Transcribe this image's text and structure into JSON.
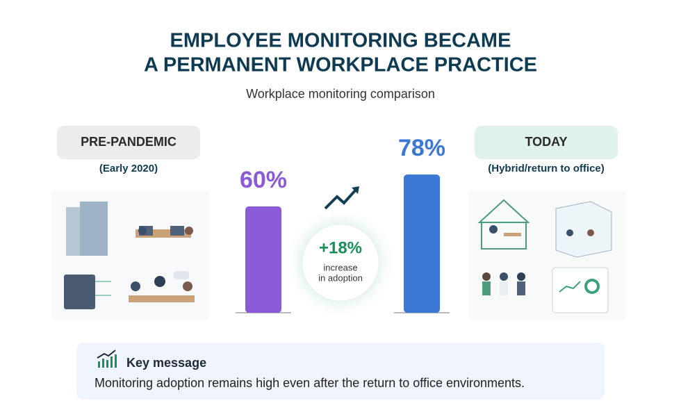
{
  "header": {
    "title_lines": [
      "EMPLOYEE MONITORING BECAME",
      "A PERMANENT WORKPLACE PRACTICE"
    ],
    "subtitle": "Workplace monitoring comparison"
  },
  "chart_data": {
    "type": "bar",
    "categories": [
      "PRE-PANDEMIC",
      "TODAY"
    ],
    "periods": [
      "(Early 2020)",
      "(Hybrid/return to office)"
    ],
    "values": [
      60,
      78
    ],
    "value_labels": [
      "60%",
      "78%"
    ],
    "colors": [
      "#8a5ad8",
      "#3a78d4"
    ],
    "annotation": {
      "change": "+18%",
      "text_lines": [
        "increase",
        "in adoption"
      ]
    }
  },
  "key_message": {
    "title": "Key message",
    "text": "Monitoring adoption remains high even after the return to office environments."
  }
}
